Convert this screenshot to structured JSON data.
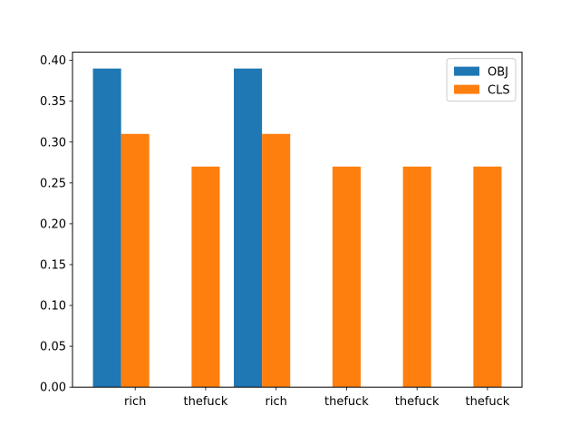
{
  "chart_data": {
    "type": "bar",
    "categories": [
      "rich",
      "thefuck",
      "rich",
      "thefuck",
      "thefuck",
      "thefuck"
    ],
    "series": [
      {
        "name": "OBJ",
        "color": "#1f77b4",
        "values": [
          0.39,
          0,
          0.39,
          0,
          0,
          0
        ]
      },
      {
        "name": "CLS",
        "color": "#ff7f0e",
        "values": [
          0.31,
          0.27,
          0.31,
          0.27,
          0.27,
          0.27
        ]
      }
    ],
    "title": "",
    "xlabel": "",
    "ylabel": "",
    "ylim": [
      0,
      0.41
    ],
    "yticks": [
      "0.00",
      "0.05",
      "0.10",
      "0.15",
      "0.20",
      "0.25",
      "0.30",
      "0.35",
      "0.40"
    ],
    "grid": false,
    "legend": "top-right"
  }
}
